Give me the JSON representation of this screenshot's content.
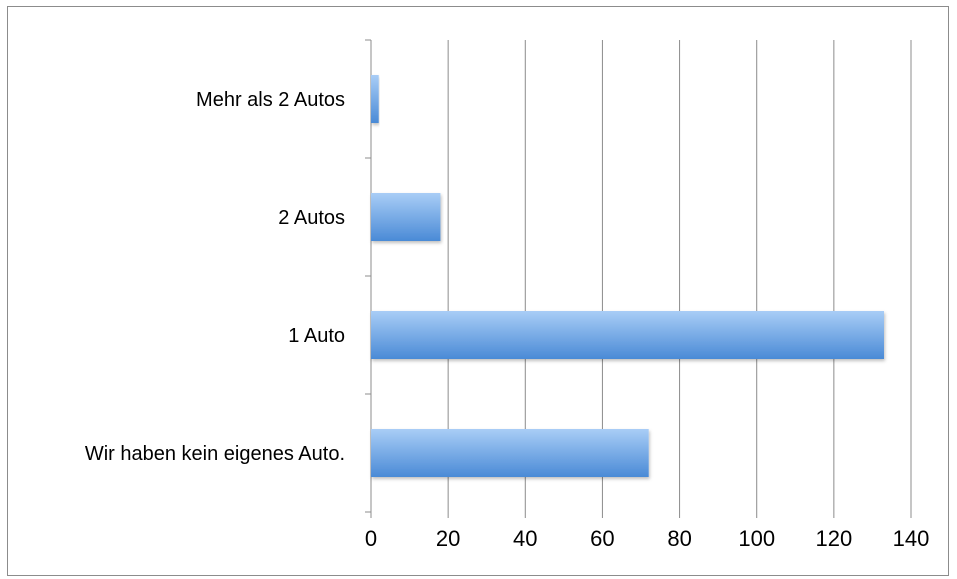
{
  "chart_data": {
    "type": "bar",
    "orientation": "horizontal",
    "title": "",
    "xlabel": "",
    "ylabel": "",
    "categories": [
      "Wir haben kein eigenes Auto.",
      "1 Auto",
      "2 Autos",
      "Mehr als 2 Autos"
    ],
    "values": [
      72,
      133,
      18,
      2
    ],
    "xlim": [
      0,
      140
    ],
    "xticks": [
      0,
      20,
      40,
      60,
      80,
      100,
      120,
      140
    ],
    "grid": true,
    "legend": "none",
    "colors": {
      "bar_light": "#a9cdf6",
      "bar_dark": "#4a8ad6",
      "grid": "#8c8c8c",
      "frame": "#8c8c8c"
    }
  }
}
